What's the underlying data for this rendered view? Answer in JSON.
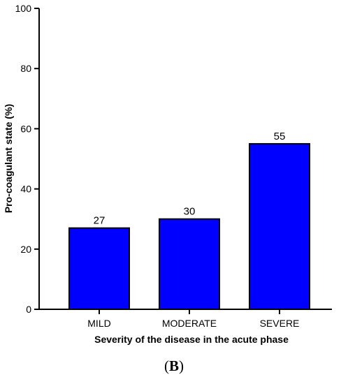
{
  "chart_data": {
    "type": "bar",
    "categories": [
      "MILD",
      "MODERATE",
      "SEVERE"
    ],
    "values": [
      27,
      30,
      55
    ],
    "data_labels": [
      "27",
      "30",
      "55"
    ],
    "xlabel": "Severity of the disease in the acute phase",
    "ylabel": "Pro-coagulant state (%)",
    "ylim": [
      0,
      100
    ],
    "yticks": [
      0,
      20,
      40,
      60,
      80,
      100
    ],
    "ytick_labels": [
      "0",
      "20",
      "40",
      "60",
      "80",
      "100"
    ],
    "grid": false,
    "legend": "none",
    "bar_color": "#0000ff",
    "bar_edge_color": "#000000"
  },
  "panel": {
    "open": "(",
    "letter": "B",
    "close": ")"
  }
}
